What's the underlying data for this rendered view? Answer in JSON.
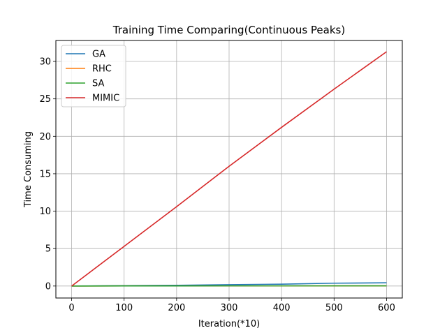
{
  "chart_data": {
    "type": "line",
    "title": "Training Time Comparing(Continuous Peaks)",
    "xlabel": "Iteration(*10)",
    "ylabel": "Time Consuming",
    "xlim": [
      -30,
      630
    ],
    "ylim": [
      -1.6,
      32.8
    ],
    "xticks": [
      0,
      100,
      200,
      300,
      400,
      500,
      600
    ],
    "yticks": [
      0,
      5,
      10,
      15,
      20,
      25,
      30
    ],
    "grid": true,
    "legend_position": "top-left",
    "series": [
      {
        "name": "GA",
        "color": "#1f77b4",
        "x": [
          0,
          100,
          200,
          300,
          400,
          500,
          600
        ],
        "y": [
          0.0,
          0.05,
          0.1,
          0.18,
          0.25,
          0.38,
          0.43
        ]
      },
      {
        "name": "RHC",
        "color": "#ff7f0e",
        "x": [
          0,
          100,
          200,
          300,
          400,
          500,
          600
        ],
        "y": [
          0.0,
          0.01,
          0.01,
          0.02,
          0.02,
          0.03,
          0.03
        ]
      },
      {
        "name": "SA",
        "color": "#2ca02c",
        "x": [
          0,
          100,
          200,
          300,
          400,
          500,
          600
        ],
        "y": [
          0.0,
          0.01,
          0.01,
          0.02,
          0.02,
          0.03,
          0.03
        ]
      },
      {
        "name": "MIMIC",
        "color": "#d62728",
        "x": [
          0,
          100,
          200,
          300,
          400,
          500,
          600
        ],
        "y": [
          0.0,
          5.3,
          10.6,
          16.0,
          21.2,
          26.3,
          31.3
        ]
      }
    ]
  }
}
